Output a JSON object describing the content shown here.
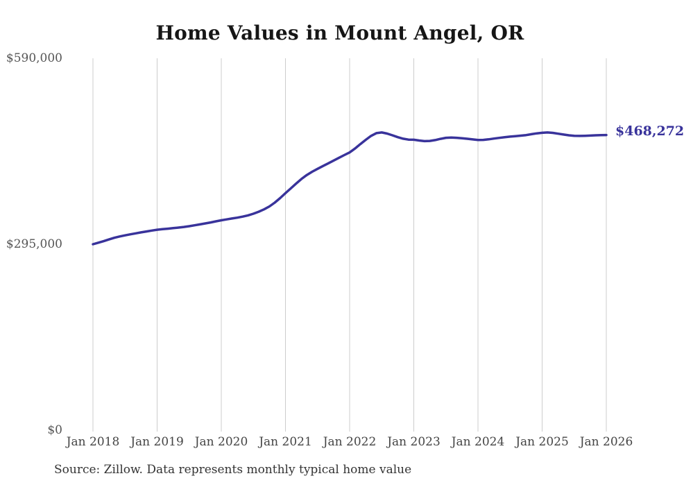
{
  "chart": {
    "title": "Home Values in Mount Angel, OR",
    "end_label": "$468,272",
    "source": "Source: Zillow. Data represents monthly typical home value",
    "line_color": "#39339b",
    "grid_color": "#cccccc",
    "title_color": "#161616",
    "axis_label_color": "#555555"
  },
  "chart_data": {
    "type": "line",
    "title": "Home Values in Mount Angel, OR",
    "series_name": "Monthly typical home value (Zillow)",
    "xlabel": "",
    "ylabel": "",
    "ylim": [
      0,
      590000
    ],
    "grid": "vertical-only",
    "legend": false,
    "annotation": "$468,272",
    "final_value": 468272,
    "y_ticks": [
      {
        "label": "$590,000",
        "value": 590000
      },
      {
        "label": "$295,000",
        "value": 295000
      },
      {
        "label": "$0",
        "value": 0
      }
    ],
    "x_tick_labels": [
      "Jan 2018",
      "Jan 2019",
      "Jan 2020",
      "Jan 2021",
      "Jan 2022",
      "Jan 2023",
      "Jan 2024",
      "Jan 2025",
      "Jan 2026"
    ],
    "x": [
      "2018-01",
      "2018-02",
      "2018-03",
      "2018-04",
      "2018-05",
      "2018-06",
      "2018-07",
      "2018-08",
      "2018-09",
      "2018-10",
      "2018-11",
      "2018-12",
      "2019-01",
      "2019-02",
      "2019-03",
      "2019-04",
      "2019-05",
      "2019-06",
      "2019-07",
      "2019-08",
      "2019-09",
      "2019-10",
      "2019-11",
      "2019-12",
      "2020-01",
      "2020-02",
      "2020-03",
      "2020-04",
      "2020-05",
      "2020-06",
      "2020-07",
      "2020-08",
      "2020-09",
      "2020-10",
      "2020-11",
      "2020-12",
      "2021-01",
      "2021-02",
      "2021-03",
      "2021-04",
      "2021-05",
      "2021-06",
      "2021-07",
      "2021-08",
      "2021-09",
      "2021-10",
      "2021-11",
      "2021-12",
      "2022-01",
      "2022-02",
      "2022-03",
      "2022-04",
      "2022-05",
      "2022-06",
      "2022-07",
      "2022-08",
      "2022-09",
      "2022-10",
      "2022-11",
      "2022-12",
      "2023-01",
      "2023-02",
      "2023-03",
      "2023-04",
      "2023-05",
      "2023-06",
      "2023-07",
      "2023-08",
      "2023-09",
      "2023-10",
      "2023-11",
      "2023-12",
      "2024-01",
      "2024-02",
      "2024-03",
      "2024-04",
      "2024-05",
      "2024-06",
      "2024-07",
      "2024-08",
      "2024-09",
      "2024-10",
      "2024-11",
      "2024-12",
      "2025-01",
      "2025-02",
      "2025-03",
      "2025-04",
      "2025-05",
      "2025-06",
      "2025-07",
      "2025-08",
      "2025-09",
      "2025-10",
      "2025-11",
      "2025-12",
      "2026-01"
    ],
    "values": [
      295000,
      297400,
      299800,
      302600,
      305200,
      307300,
      309100,
      310700,
      312300,
      313800,
      315300,
      316700,
      318000,
      318900,
      319700,
      320500,
      321400,
      322400,
      323600,
      325000,
      326500,
      328000,
      329600,
      331300,
      333000,
      334400,
      335800,
      337200,
      338800,
      340800,
      343400,
      346600,
      350400,
      355000,
      361000,
      368200,
      376000,
      383600,
      391200,
      398600,
      404800,
      410000,
      414600,
      419000,
      423400,
      427800,
      432200,
      436500,
      440600,
      446800,
      453800,
      460600,
      466800,
      471200,
      472300,
      470600,
      467800,
      464900,
      462400,
      461000,
      460800,
      459600,
      458600,
      458900,
      460200,
      462200,
      463800,
      464200,
      463800,
      463200,
      462300,
      461300,
      460400,
      460600,
      461400,
      462600,
      463700,
      464700,
      465700,
      466500,
      467300,
      468200,
      469600,
      470900,
      471800,
      472300,
      471700,
      470400,
      469000,
      467800,
      467000,
      466800,
      467000,
      467400,
      467800,
      468100,
      468272
    ]
  }
}
